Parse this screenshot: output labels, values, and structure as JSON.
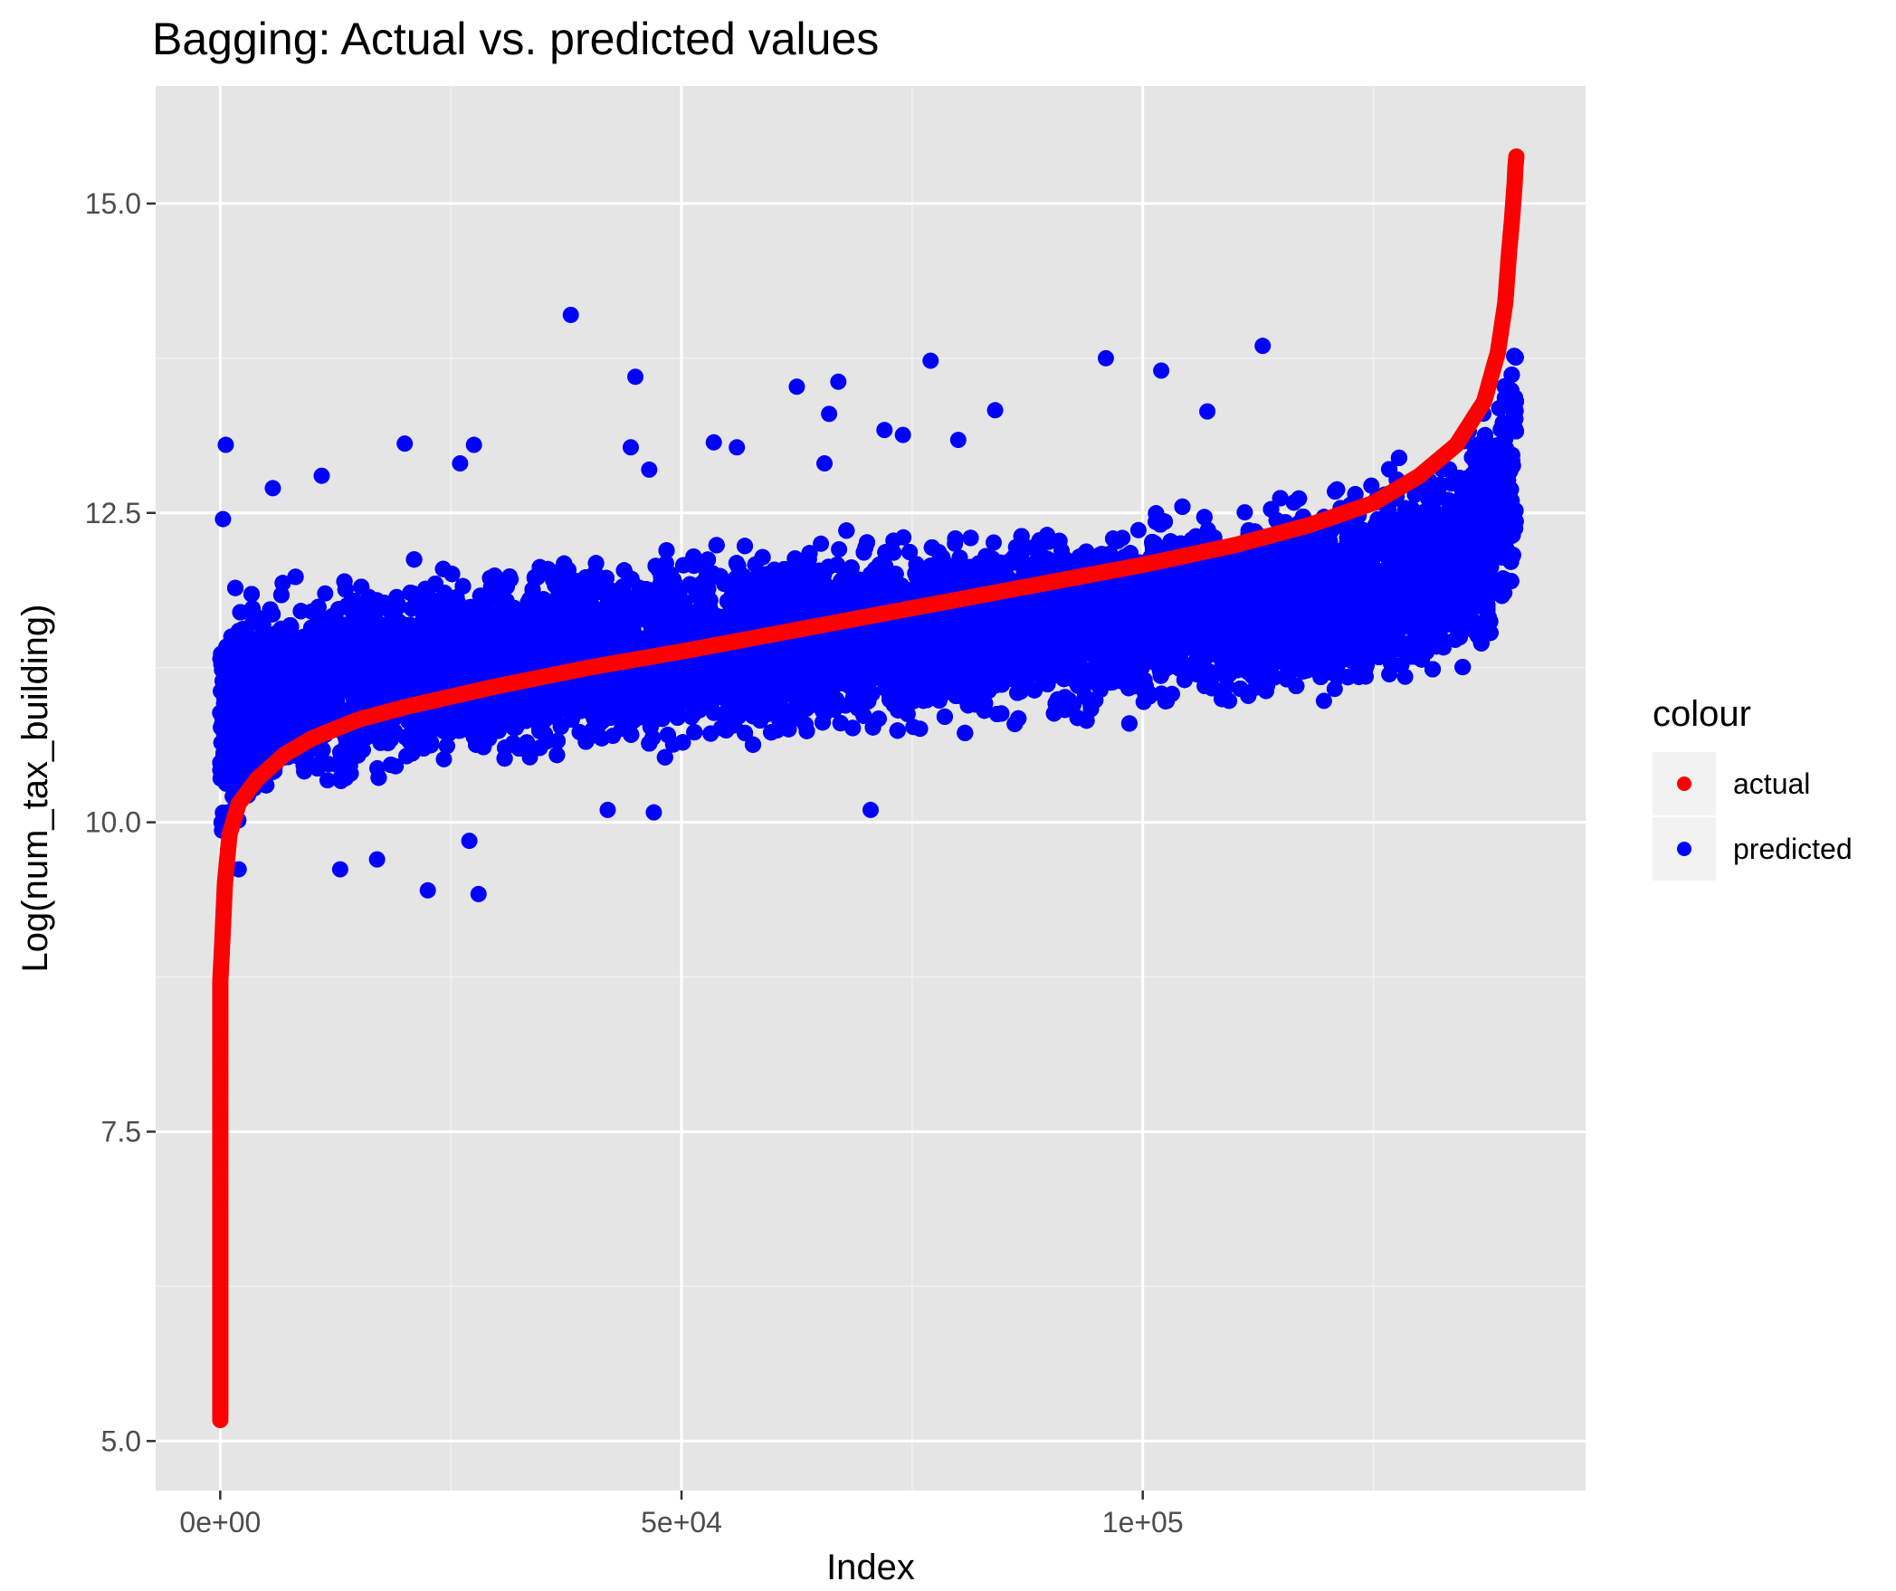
{
  "chart_data": {
    "type": "scatter",
    "title": "Bagging: Actual vs. predicted values",
    "xlabel": "Index",
    "ylabel": "Log(num_tax_building)",
    "xlim": [
      -7000,
      148000
    ],
    "ylim": [
      4.6,
      15.95
    ],
    "x_ticks": [
      0,
      50000,
      100000
    ],
    "x_tick_labels": [
      "0e+00",
      "5e+04",
      "1e+05"
    ],
    "y_ticks": [
      5.0,
      7.5,
      10.0,
      12.5,
      15.0
    ],
    "y_tick_labels": [
      "5.0",
      "7.5",
      "10.0",
      "12.5",
      "15.0"
    ],
    "grid": true,
    "n_points": 140500,
    "legend": {
      "title": "colour",
      "position": "right",
      "entries": [
        {
          "label": "actual",
          "color": "#ff0000"
        },
        {
          "label": "predicted",
          "color": "#0000ff"
        }
      ]
    },
    "series": [
      {
        "name": "actual",
        "color": "#ff0000",
        "points": [
          [
            0,
            5.17
          ],
          [
            0,
            6.88
          ],
          [
            0,
            7.76
          ],
          [
            0,
            8.15
          ],
          [
            0,
            8.3
          ],
          [
            0,
            8.5
          ],
          [
            0,
            8.7
          ],
          [
            200,
            9.0
          ],
          [
            500,
            9.5
          ],
          [
            1000,
            9.9
          ],
          [
            2000,
            10.15
          ],
          [
            4000,
            10.35
          ],
          [
            7000,
            10.55
          ],
          [
            10000,
            10.68
          ],
          [
            15000,
            10.83
          ],
          [
            20000,
            10.93
          ],
          [
            30000,
            11.1
          ],
          [
            40000,
            11.25
          ],
          [
            50000,
            11.38
          ],
          [
            60000,
            11.52
          ],
          [
            70000,
            11.66
          ],
          [
            80000,
            11.8
          ],
          [
            90000,
            11.94
          ],
          [
            100000,
            12.08
          ],
          [
            110000,
            12.24
          ],
          [
            118000,
            12.4
          ],
          [
            125000,
            12.58
          ],
          [
            130000,
            12.8
          ],
          [
            134000,
            13.05
          ],
          [
            137000,
            13.4
          ],
          [
            138500,
            13.8
          ],
          [
            139300,
            14.2
          ],
          [
            139700,
            14.6
          ],
          [
            140000,
            14.85
          ],
          [
            140200,
            15.05
          ],
          [
            140300,
            15.15
          ],
          [
            140400,
            15.3
          ],
          [
            140500,
            15.38
          ]
        ]
      },
      {
        "name": "predicted",
        "color": "#0000ff",
        "band_lower": [
          [
            0,
            9.5
          ],
          [
            2000,
            9.85
          ],
          [
            10000,
            10.05
          ],
          [
            20000,
            10.2
          ],
          [
            40000,
            10.4
          ],
          [
            60000,
            10.55
          ],
          [
            80000,
            10.65
          ],
          [
            100000,
            10.75
          ],
          [
            120000,
            10.85
          ],
          [
            135000,
            10.95
          ],
          [
            140500,
            11.4
          ]
        ],
        "band_upper": [
          [
            0,
            12.0
          ],
          [
            2000,
            12.05
          ],
          [
            10000,
            12.1
          ],
          [
            20000,
            12.15
          ],
          [
            40000,
            12.3
          ],
          [
            60000,
            12.35
          ],
          [
            80000,
            12.45
          ],
          [
            100000,
            12.6
          ],
          [
            120000,
            12.85
          ],
          [
            132000,
            13.2
          ],
          [
            138000,
            13.6
          ],
          [
            140500,
            14.4
          ]
        ],
        "outliers": [
          [
            600,
            13.05
          ],
          [
            300,
            12.45
          ],
          [
            5700,
            12.7
          ],
          [
            11000,
            12.8
          ],
          [
            20000,
            13.06
          ],
          [
            26000,
            12.9
          ],
          [
            27500,
            13.05
          ],
          [
            38000,
            14.1
          ],
          [
            45000,
            13.6
          ],
          [
            44500,
            13.03
          ],
          [
            46500,
            12.85
          ],
          [
            53500,
            13.07
          ],
          [
            56000,
            13.03
          ],
          [
            62500,
            13.52
          ],
          [
            65500,
            12.9
          ],
          [
            66000,
            13.3
          ],
          [
            67000,
            13.56
          ],
          [
            72000,
            13.17
          ],
          [
            74000,
            13.13
          ],
          [
            77000,
            13.73
          ],
          [
            80000,
            13.09
          ],
          [
            84000,
            13.33
          ],
          [
            96000,
            13.75
          ],
          [
            102000,
            13.65
          ],
          [
            107000,
            13.32
          ],
          [
            113000,
            13.85
          ],
          [
            22500,
            9.45
          ],
          [
            28000,
            9.42
          ],
          [
            27000,
            9.85
          ],
          [
            13000,
            9.62
          ],
          [
            17000,
            9.7
          ],
          [
            2000,
            9.62
          ],
          [
            42000,
            10.1
          ],
          [
            47000,
            10.08
          ],
          [
            70500,
            10.1
          ]
        ]
      }
    ]
  }
}
